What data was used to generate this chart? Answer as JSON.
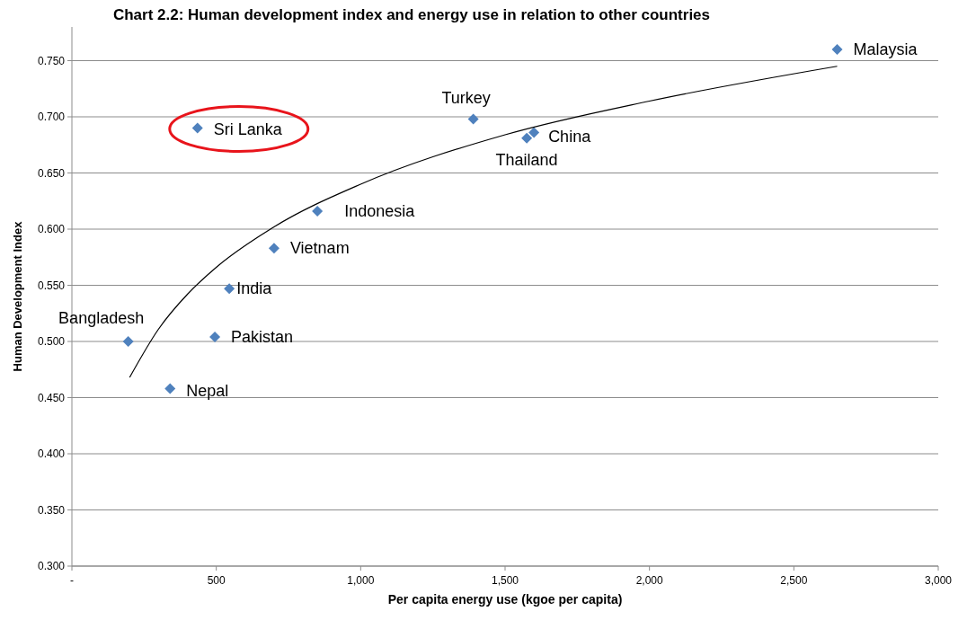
{
  "chart_data": {
    "type": "scatter",
    "title": "Chart 2.2: Human development index and energy use in relation to other countries",
    "xlabel": "Per capita energy use (kgoe per capita)",
    "ylabel": "Human Development Index",
    "xlim": [
      0,
      3000
    ],
    "xticks": [
      {
        "value": 0,
        "label": "-"
      },
      500,
      {
        "value": 1000,
        "label": "1,000"
      },
      {
        "value": 1500,
        "label": "1,500"
      },
      {
        "value": 2000,
        "label": "2,000"
      },
      {
        "value": 2500,
        "label": "2,500"
      },
      {
        "value": 3000,
        "label": "3,000"
      }
    ],
    "ylim": [
      0.3,
      0.78
    ],
    "yticks": [
      {
        "value": 0.3,
        "label": "0.300"
      },
      {
        "value": 0.35,
        "label": "0.350"
      },
      {
        "value": 0.4,
        "label": "0.400"
      },
      {
        "value": 0.45,
        "label": "0.450"
      },
      {
        "value": 0.5,
        "label": "0.500"
      },
      {
        "value": 0.55,
        "label": "0.550"
      },
      {
        "value": 0.6,
        "label": "0.600"
      },
      {
        "value": 0.65,
        "label": "0.650"
      },
      {
        "value": 0.7,
        "label": "0.700"
      },
      {
        "value": 0.75,
        "label": "0.750"
      }
    ],
    "grid": "y",
    "marker": "diamond",
    "series": [
      {
        "color": "#4f81bd",
        "x": [
          195,
          340,
          435,
          495,
          545,
          700,
          850,
          1390,
          1575,
          1600,
          2650
        ],
        "values": [
          0.5,
          0.458,
          0.69,
          0.504,
          0.547,
          0.583,
          0.616,
          0.698,
          0.681,
          0.686,
          0.76
        ]
      },
      {
        "type": "line",
        "color": "#000000",
        "marker": "none",
        "x": [
          200,
          300,
          400,
          500,
          700,
          1000,
          1500,
          2000,
          2650
        ],
        "values": [
          0.468,
          0.511,
          0.542,
          0.566,
          0.602,
          0.64,
          0.684,
          0.714,
          0.745
        ]
      }
    ],
    "annotations": [
      {
        "text": "Bangladesh",
        "x": 195,
        "y": 0.5
      },
      {
        "text": "Nepal",
        "x": 340,
        "y": 0.458
      },
      {
        "text": "Sri Lanka",
        "x": 435,
        "y": 0.69
      },
      {
        "text": "Pakistan",
        "x": 495,
        "y": 0.504
      },
      {
        "text": "India",
        "x": 545,
        "y": 0.547
      },
      {
        "text": "Vietnam",
        "x": 700,
        "y": 0.583
      },
      {
        "text": "Indonesia",
        "x": 850,
        "y": 0.616
      },
      {
        "text": "Turkey",
        "x": 1390,
        "y": 0.698
      },
      {
        "text": "Thailand",
        "x": 1575,
        "y": 0.681
      },
      {
        "text": "China",
        "x": 1600,
        "y": 0.686
      },
      {
        "text": "Malaysia",
        "x": 2650,
        "y": 0.76
      }
    ]
  }
}
